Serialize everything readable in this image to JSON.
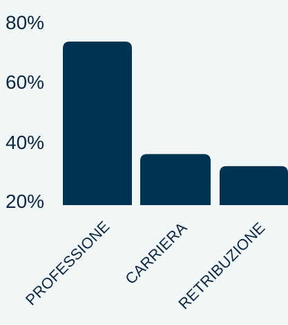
{
  "chart_data": {
    "type": "bar",
    "categories": [
      "PROFESSIONE",
      "CARRIERA",
      "RETRIBUZIONE"
    ],
    "values": [
      74.5,
      37,
      33
    ],
    "y_ticks": [
      "80%",
      "60%",
      "40%",
      "20%"
    ],
    "y_tick_values": [
      80,
      60,
      40,
      20
    ],
    "ylim": [
      20,
      80
    ],
    "title": "",
    "xlabel": "",
    "ylabel": "",
    "grid": false,
    "colors": {
      "bar": "#003352",
      "text": "#0b2741",
      "background": "#f1f6f7"
    }
  }
}
